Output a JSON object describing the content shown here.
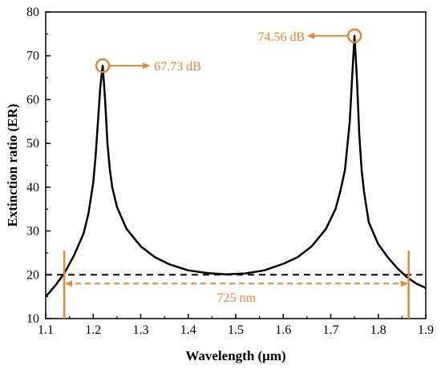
{
  "chart_data": {
    "type": "line",
    "xlabel": "Wavelength (μm)",
    "ylabel": "Extinction ratio (ER)",
    "xlim": [
      1.1,
      1.9
    ],
    "ylim": [
      10,
      80
    ],
    "x_ticks": [
      "1.1",
      "1.2",
      "1.3",
      "1.4",
      "1.5",
      "1.6",
      "1.7",
      "1.8",
      "1.9"
    ],
    "y_ticks": [
      "10",
      "20",
      "30",
      "40",
      "50",
      "60",
      "70",
      "80"
    ],
    "grid": false,
    "series": [
      {
        "color": "#000000",
        "x": [
          1.1,
          1.12,
          1.14,
          1.16,
          1.18,
          1.19,
          1.2,
          1.205,
          1.21,
          1.215,
          1.22,
          1.225,
          1.23,
          1.235,
          1.24,
          1.25,
          1.27,
          1.3,
          1.33,
          1.36,
          1.4,
          1.44,
          1.48,
          1.52,
          1.56,
          1.6,
          1.63,
          1.66,
          1.69,
          1.71,
          1.72,
          1.73,
          1.74,
          1.745,
          1.75,
          1.755,
          1.76,
          1.765,
          1.77,
          1.78,
          1.8,
          1.82,
          1.84,
          1.86,
          1.88,
          1.9
        ],
        "y": [
          15.0,
          17.5,
          20.5,
          24.5,
          29.5,
          34.0,
          41.0,
          47.0,
          55.0,
          63.0,
          67.73,
          60.0,
          50.0,
          44.0,
          40.0,
          35.5,
          30.5,
          26.5,
          24.0,
          22.4,
          21.0,
          20.4,
          20.1,
          20.3,
          21.0,
          22.5,
          24.0,
          26.5,
          30.5,
          35.0,
          39.0,
          44.0,
          55.0,
          65.0,
          74.56,
          65.0,
          52.0,
          44.0,
          39.0,
          32.0,
          27.0,
          24.0,
          21.5,
          19.5,
          18.0,
          17.0
        ]
      },
      {
        "color": "#000000",
        "style": "dashed",
        "x": [
          1.1,
          1.9
        ],
        "y": [
          20,
          20
        ]
      }
    ],
    "annotations": [
      {
        "text": "67.73 dB",
        "x": 1.22,
        "y": 67.73,
        "color": "#e8862f",
        "arrow": "right"
      },
      {
        "text": "74.56 dB",
        "x": 1.75,
        "y": 74.56,
        "color": "#e8862f",
        "arrow": "left"
      },
      {
        "text": "725 nm",
        "x_start": 1.139,
        "x_end": 1.864,
        "y": 18,
        "color": "#e8862f"
      }
    ]
  }
}
